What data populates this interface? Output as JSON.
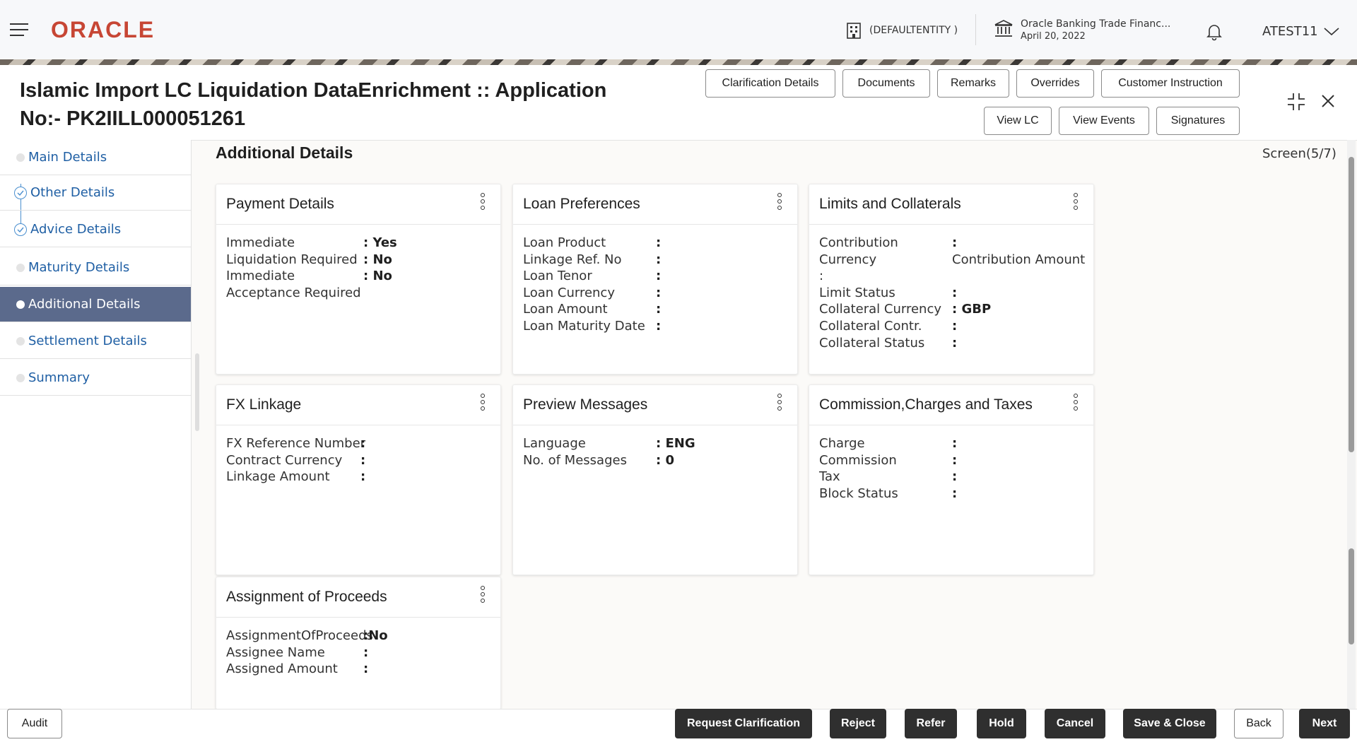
{
  "header": {
    "brand": "ORACLE",
    "entity": "(DEFAULTENTITY )",
    "bank_name": "Oracle Banking Trade Financ...",
    "date": "April 20, 2022",
    "user": "ATEST11"
  },
  "page": {
    "title_line1": "Islamic Import LC Liquidation DataEnrichment :: Application",
    "title_line2": "No:- PK2IILL000051261",
    "section_title": "Additional Details",
    "screen_indicator": "Screen(5/7)"
  },
  "header_buttons": {
    "clarification": "Clarification Details",
    "documents": "Documents",
    "remarks": "Remarks",
    "overrides": "Overrides",
    "customer_instruction": "Customer Instruction",
    "view_lc": "View LC",
    "view_events": "View Events",
    "signatures": "Signatures"
  },
  "sidebar": {
    "items": [
      {
        "label": "Main Details"
      },
      {
        "label": "Other Details"
      },
      {
        "label": "Advice Details"
      },
      {
        "label": "Maturity Details"
      },
      {
        "label": "Additional Details"
      },
      {
        "label": "Settlement Details"
      },
      {
        "label": "Summary"
      }
    ]
  },
  "cards": {
    "payment": {
      "title": "Payment Details",
      "rows": [
        {
          "label": "Immediate",
          "value": ": Yes"
        },
        {
          "label": "Liquidation Required",
          "value": ": No"
        },
        {
          "label": "Immediate",
          "value": ": No"
        },
        {
          "label": "Acceptance Required",
          "value": ""
        }
      ]
    },
    "loan": {
      "title": "Loan Preferences",
      "rows": [
        {
          "label": "Loan Product",
          "value": ":"
        },
        {
          "label": "Linkage Ref. No",
          "value": ":"
        },
        {
          "label": "Loan Tenor",
          "value": ":"
        },
        {
          "label": "Loan Currency",
          "value": ":"
        },
        {
          "label": "Loan Amount",
          "value": ":"
        },
        {
          "label": "Loan Maturity Date",
          "value": ":"
        }
      ]
    },
    "limits": {
      "title": "Limits and Collaterals",
      "rows": [
        {
          "label": "Contribution",
          "value": ":"
        },
        {
          "label": "Currency",
          "value": "Contribution Amount"
        },
        {
          "label": ":",
          "value": ""
        },
        {
          "label": "Limit Status",
          "value": ":"
        },
        {
          "label": "Collateral Currency",
          "value": ": GBP"
        },
        {
          "label": "Collateral Contr.",
          "value": ":"
        },
        {
          "label": "Collateral Status",
          "value": ":"
        }
      ]
    },
    "fx": {
      "title": "FX Linkage",
      "rows": [
        {
          "label": "FX Reference Number",
          "value": ":"
        },
        {
          "label": "Contract Currency",
          "value": ":"
        },
        {
          "label": "Linkage Amount",
          "value": ":"
        }
      ]
    },
    "preview": {
      "title": "Preview Messages",
      "rows": [
        {
          "label": "Language",
          "value": ": ENG"
        },
        {
          "label": "No. of Messages",
          "value": ": 0"
        }
      ]
    },
    "commission": {
      "title": "Commission,Charges and Taxes",
      "rows": [
        {
          "label": "Charge",
          "value": ":"
        },
        {
          "label": "Commission",
          "value": ":"
        },
        {
          "label": "Tax",
          "value": ":"
        },
        {
          "label": "Block Status",
          "value": ":"
        }
      ]
    },
    "assignment": {
      "title": "Assignment of Proceeds",
      "rows": [
        {
          "label": "AssignmentOfProceeds",
          "value": ":No"
        },
        {
          "label": "Assignee Name",
          "value": ":"
        },
        {
          "label": "Assigned Amount",
          "value": ":"
        }
      ]
    }
  },
  "footer": {
    "audit": "Audit",
    "request_clarification": "Request Clarification",
    "reject": "Reject",
    "refer": "Refer",
    "hold": "Hold",
    "cancel": "Cancel",
    "save_close": "Save & Close",
    "back": "Back",
    "next": "Next"
  },
  "colors": {
    "brand": "#c74634",
    "active_nav": "#5b6a8c",
    "link": "#1f5fa4",
    "dark_button": "#2f2f2f"
  }
}
